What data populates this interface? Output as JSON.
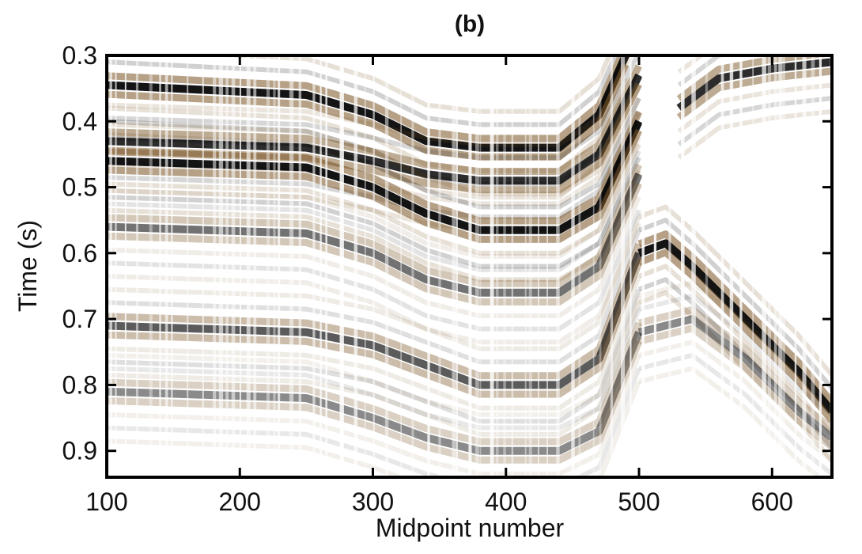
{
  "chart_data": {
    "type": "heatmap",
    "title": "(b)",
    "xlabel": "Midpoint number",
    "ylabel": "Time (s)",
    "xlim": [
      100,
      645
    ],
    "ylim": [
      0.3,
      0.94
    ],
    "y_inverted": true,
    "x_ticks": [
      100,
      200,
      300,
      400,
      500,
      600
    ],
    "y_ticks": [
      0.3,
      0.4,
      0.5,
      0.6,
      0.7,
      0.8,
      0.9
    ],
    "colormap": {
      "negative": "#7a5424",
      "zero": "#ffffff",
      "positive": "#000000"
    },
    "grid": false,
    "legend": "none",
    "horizons": [
      {
        "id": "h1",
        "t": [
          [
            100,
            0.345
          ],
          [
            250,
            0.36
          ],
          [
            300,
            0.39
          ],
          [
            340,
            0.43
          ],
          [
            380,
            0.44
          ],
          [
            440,
            0.44
          ],
          [
            470,
            0.39
          ],
          [
            490,
            0.3
          ]
        ],
        "amplitude": 1.0
      },
      {
        "id": "h2",
        "t": [
          [
            100,
            0.43
          ],
          [
            250,
            0.44
          ],
          [
            300,
            0.46
          ],
          [
            340,
            0.48
          ],
          [
            380,
            0.49
          ],
          [
            440,
            0.49
          ],
          [
            470,
            0.45
          ],
          [
            500,
            0.33
          ]
        ],
        "amplitude": 0.9
      },
      {
        "id": "h3",
        "t": [
          [
            100,
            0.46
          ],
          [
            250,
            0.47
          ],
          [
            300,
            0.5
          ],
          [
            340,
            0.54
          ],
          [
            380,
            0.565
          ],
          [
            440,
            0.565
          ],
          [
            470,
            0.53
          ],
          [
            500,
            0.4
          ]
        ],
        "amplitude": 1.0
      },
      {
        "id": "h4",
        "t": [
          [
            100,
            0.56
          ],
          [
            250,
            0.57
          ],
          [
            300,
            0.6
          ],
          [
            340,
            0.64
          ],
          [
            380,
            0.66
          ],
          [
            440,
            0.66
          ],
          [
            470,
            0.62
          ],
          [
            500,
            0.48
          ]
        ],
        "amplitude": 0.6
      },
      {
        "id": "h5",
        "t": [
          [
            100,
            0.71
          ],
          [
            250,
            0.72
          ],
          [
            300,
            0.74
          ],
          [
            340,
            0.77
          ],
          [
            380,
            0.8
          ],
          [
            440,
            0.8
          ],
          [
            470,
            0.76
          ],
          [
            500,
            0.6
          ]
        ],
        "amplitude": 0.7
      },
      {
        "id": "h6",
        "t": [
          [
            100,
            0.81
          ],
          [
            250,
            0.82
          ],
          [
            300,
            0.85
          ],
          [
            340,
            0.88
          ],
          [
            380,
            0.9
          ],
          [
            440,
            0.9
          ],
          [
            470,
            0.87
          ],
          [
            500,
            0.72
          ]
        ],
        "amplitude": 0.5
      },
      {
        "id": "h7",
        "t": [
          [
            500,
            0.6
          ],
          [
            520,
            0.585
          ],
          [
            540,
            0.62
          ],
          [
            580,
            0.7
          ],
          [
            620,
            0.78
          ],
          [
            645,
            0.84
          ]
        ],
        "amplitude": 1.0
      },
      {
        "id": "h8",
        "t": [
          [
            530,
            0.38
          ],
          [
            560,
            0.335
          ],
          [
            600,
            0.32
          ],
          [
            645,
            0.31
          ]
        ],
        "amplitude": 0.9
      },
      {
        "id": "h9",
        "t": [
          [
            500,
            0.72
          ],
          [
            540,
            0.7
          ],
          [
            580,
            0.76
          ],
          [
            620,
            0.84
          ],
          [
            645,
            0.88
          ]
        ],
        "amplitude": 0.5
      }
    ]
  }
}
